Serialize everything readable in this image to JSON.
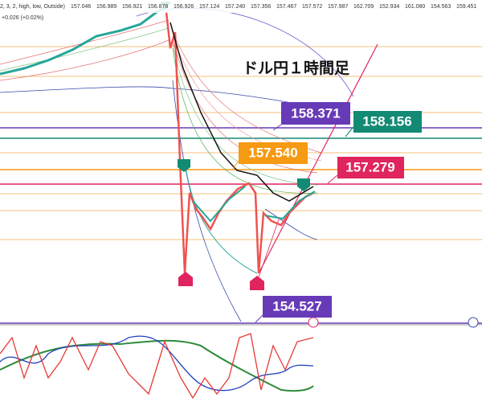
{
  "header": {
    "legend_prefix": "2, 3, 2, high, low, Outside)",
    "change": "+0.026 (+0.02%)",
    "values": [
      "157.046",
      "156.989",
      "156.921",
      "156.878",
      "156.926",
      "157.124",
      "157.240",
      "157.356",
      "157.467",
      "157.572",
      "157.987",
      "162.709",
      "152.934",
      "161.080",
      "154.563",
      "159.451"
    ]
  },
  "title": "ドル円１時間足",
  "labels": [
    {
      "text": "158.371",
      "color": "#673ab7"
    },
    {
      "text": "158.156",
      "color": "#138a74"
    },
    {
      "text": "157.540",
      "color": "#f59a12"
    },
    {
      "text": "157.279",
      "color": "#e0245e"
    },
    {
      "text": "154.527",
      "color": "#673ab7"
    }
  ]
}
